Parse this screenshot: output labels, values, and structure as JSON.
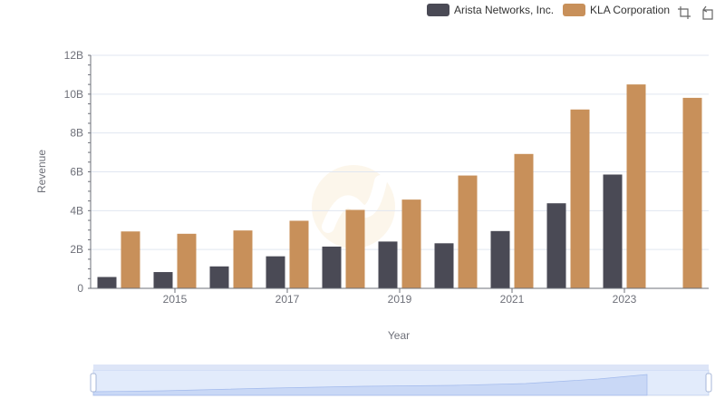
{
  "legend": {
    "items": [
      {
        "label": "Arista Networks, Inc.",
        "color": "#4a4a55"
      },
      {
        "label": "KLA Corporation",
        "color": "#c8905a"
      }
    ]
  },
  "toolbox": {
    "icons": [
      "zoom-icon",
      "restore-icon"
    ]
  },
  "chart_data": {
    "type": "bar",
    "xlabel": "Year",
    "ylabel": "Revenue",
    "ylim": [
      0,
      12000000000
    ],
    "y_ticks": [
      "0",
      "2B",
      "4B",
      "6B",
      "8B",
      "10B",
      "12B"
    ],
    "x_tick_labels": [
      "2015",
      "2017",
      "2019",
      "2021",
      "2023"
    ],
    "categories": [
      "2014",
      "2015",
      "2016",
      "2017",
      "2018",
      "2019",
      "2020",
      "2021",
      "2022",
      "2023",
      "2024"
    ],
    "series": [
      {
        "name": "Arista Networks, Inc.",
        "color": "#4a4a55",
        "values": [
          584000000,
          838000000,
          1130000000,
          1650000000,
          2150000000,
          2410000000,
          2320000000,
          2950000000,
          4380000000,
          5860000000,
          null
        ]
      },
      {
        "name": "KLA Corporation",
        "color": "#c8905a",
        "values": [
          2930000000,
          2810000000,
          2980000000,
          3480000000,
          4040000000,
          4570000000,
          5810000000,
          6920000000,
          9210000000,
          10500000000,
          9810000000
        ]
      }
    ],
    "grid": true,
    "legend_position": "top-right",
    "datazoom": true
  }
}
